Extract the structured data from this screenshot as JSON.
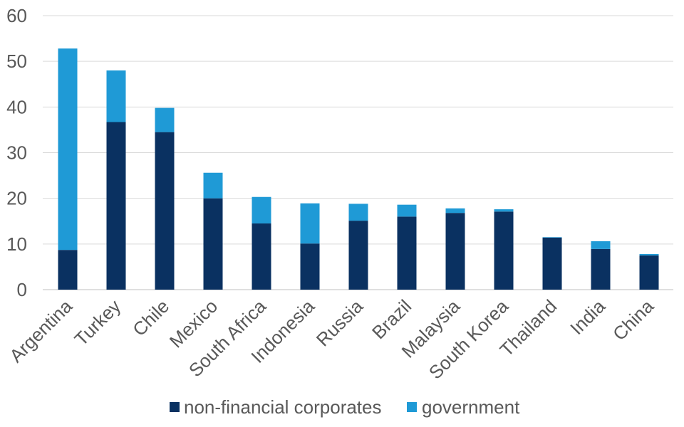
{
  "chart_data": {
    "type": "bar",
    "stacked": true,
    "title": "",
    "xlabel": "",
    "ylabel": "",
    "ylim": [
      0,
      60
    ],
    "yticks": [
      0,
      10,
      20,
      30,
      40,
      50,
      60
    ],
    "grid": true,
    "legend_position": "bottom",
    "categories": [
      "Argentina",
      "Turkey",
      "Chile",
      "Mexico",
      "South Africa",
      "Indonesia",
      "Russia",
      "Brazil",
      "Malaysia",
      "South Korea",
      "Thailand",
      "India",
      "China"
    ],
    "series": [
      {
        "name": "non-financial corporates",
        "color": "#0a3161",
        "values": [
          8.7,
          36.7,
          34.5,
          20.0,
          14.5,
          10.1,
          15.1,
          16.0,
          16.8,
          17.1,
          11.4,
          8.9,
          7.5
        ]
      },
      {
        "name": "government",
        "color": "#1f9ad6",
        "values": [
          44.1,
          11.3,
          5.3,
          5.6,
          5.8,
          8.8,
          3.7,
          2.6,
          1.0,
          0.5,
          0.1,
          1.7,
          0.3
        ]
      }
    ]
  }
}
